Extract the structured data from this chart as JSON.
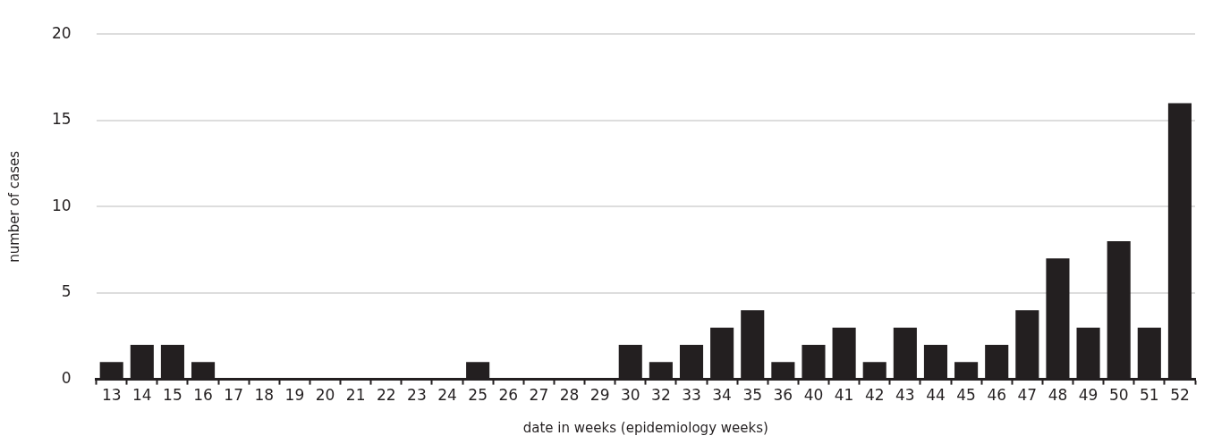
{
  "chart_data": {
    "type": "bar",
    "xlabel": "date in weeks (epidemiology weeks)",
    "ylabel": "number of cases",
    "categories": [
      "13",
      "14",
      "15",
      "16",
      "17",
      "18",
      "19",
      "20",
      "21",
      "22",
      "23",
      "24",
      "25",
      "26",
      "27",
      "28",
      "29",
      "30",
      "32",
      "33",
      "34",
      "35",
      "36",
      "40",
      "41",
      "42",
      "43",
      "44",
      "45",
      "46",
      "47",
      "48",
      "49",
      "50",
      "51",
      "52"
    ],
    "values": [
      1,
      2,
      2,
      1,
      0,
      0,
      0,
      0,
      0,
      0,
      0,
      0,
      1,
      0,
      0,
      0,
      0,
      2,
      1,
      2,
      3,
      4,
      1,
      2,
      3,
      1,
      3,
      2,
      1,
      2,
      4,
      7,
      3,
      8,
      3,
      16
    ],
    "color": "#231f20",
    "ylim": [
      0,
      20
    ],
    "yticks": [
      0,
      5,
      10,
      15,
      20
    ],
    "grid": "y",
    "legend": false
  }
}
